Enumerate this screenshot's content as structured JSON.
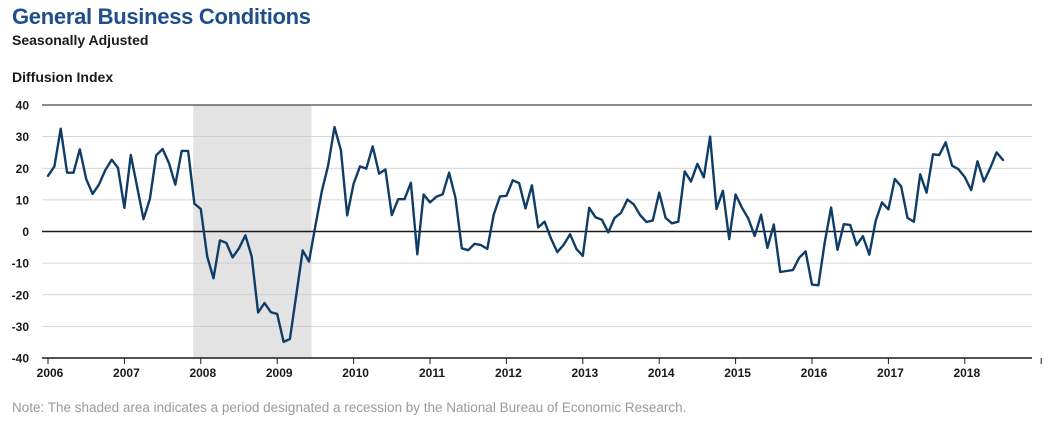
{
  "title": "General Business Conditions",
  "subtitle": "Seasonally Adjusted",
  "note": "Note: The shaded area indicates a period designated a recession by the National Bureau of Economic Research.",
  "colors": {
    "line": "#0f3d67",
    "title": "#1f4e8a",
    "recession": "#e3e3e3",
    "grid": "#c8c8c8"
  },
  "chart_data": {
    "type": "line",
    "title": "General Business Conditions",
    "subtitle": "Seasonally Adjusted",
    "xlabel": "",
    "ylabel": "Diffusion Index",
    "ylim": [
      -40,
      40
    ],
    "yticks": [
      40,
      30,
      20,
      10,
      0,
      -10,
      -20,
      -30,
      -40
    ],
    "xlim": [
      2006,
      2019
    ],
    "xticks": [
      "2006",
      "2007",
      "2008",
      "2009",
      "2010",
      "2011",
      "2012",
      "2013",
      "2014",
      "2015",
      "2016",
      "2017",
      "2018"
    ],
    "grid": true,
    "legend": "none",
    "shaded_periods": [
      {
        "start": 2007.9,
        "end": 2009.45,
        "label": "recession"
      }
    ],
    "series": [
      {
        "frequency": "monthly",
        "start": "2006-01",
        "values": [
          17.6,
          20.6,
          32.5,
          18.6,
          18.6,
          26,
          16.6,
          11.9,
          14.8,
          19.4,
          22.7,
          20.1,
          7.5,
          24.2,
          14.2,
          3.9,
          10.3,
          24.1,
          26.1,
          21.6,
          14.8,
          25.5,
          25.5,
          8.8,
          7.1,
          -7.9,
          -14.8,
          -2.8,
          -3.6,
          -8.2,
          -5.3,
          -1.2,
          -7.9,
          -25.6,
          -22.6,
          -25.5,
          -26.1,
          -34.9,
          -34,
          -20,
          -6,
          -9.5,
          1.8,
          12.7,
          20.8,
          33,
          25.7,
          5.1,
          15.1,
          20.6,
          19.9,
          26.9,
          18.3,
          19.6,
          5.2,
          10.2,
          10.2,
          15.4,
          -7.2,
          11.7,
          9.2,
          11,
          11.8,
          18.6,
          10.6,
          -5.3,
          -5.9,
          -3.9,
          -4.3,
          -5.5,
          5.3,
          11.1,
          11.3,
          16.2,
          15.3,
          7.3,
          14.6,
          1.3,
          3.1,
          -2.2,
          -6.5,
          -4.2,
          -0.9,
          -5.5,
          -7.7,
          7.5,
          4.5,
          3.7,
          -0.3,
          4.3,
          5.9,
          10.1,
          8.6,
          5.2,
          3,
          3.5,
          12.3,
          4.3,
          2.6,
          3.1,
          19,
          15.8,
          21.4,
          17.1,
          30,
          7.1,
          12.9,
          -2.4,
          11.7,
          7.5,
          4.1,
          -1.4,
          5.3,
          -5.2,
          2.2,
          -12.8,
          -12.5,
          -12.2,
          -8.3,
          -6.3,
          -16.8,
          -17,
          -3.5,
          7.6,
          -5.8,
          2.3,
          2.1,
          -4.3,
          -1.5,
          -7.3,
          3.4,
          9.2,
          7,
          16.6,
          14.3,
          4.3,
          3.1,
          18.1,
          12.3,
          24.4,
          24.2,
          28.2,
          20.8,
          19.7,
          17.2,
          13.1,
          22.2,
          15.8,
          20.1,
          25,
          22.6
        ]
      }
    ]
  }
}
